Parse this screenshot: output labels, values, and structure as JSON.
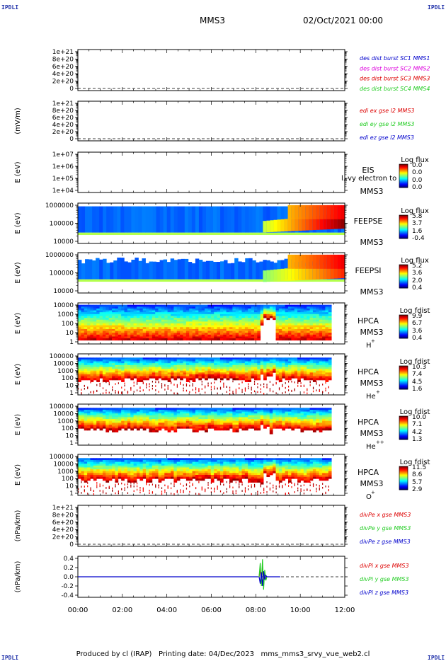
{
  "header": {
    "corner_mark": "IPDLI",
    "spacecraft": "MMS3",
    "datetime": "02/Oct/2021 00:00"
  },
  "footer": {
    "produced_by": "Produced by cl (IRAP)",
    "printing_date": "Printing date: 04/Dec/2023",
    "filename": "mms_mms3_srvy_vue_web2.cl"
  },
  "x_axis": {
    "ticks": [
      "00:00",
      "02:00",
      "04:00",
      "06:00",
      "08:00",
      "10:00",
      "12:00"
    ]
  },
  "colors": {
    "red": "#dd0000",
    "magenta": "#dd00dd",
    "green": "#22cc22",
    "blue": "#0000cc"
  },
  "panels": [
    {
      "id": "dist-burst",
      "type": "line",
      "ylabel": "",
      "ticks": [
        "1e+21",
        "8e+20",
        "6e+20",
        "4e+20",
        "2e+20",
        "0"
      ],
      "legend": [
        {
          "text": "des dist burst SC1 MMS1",
          "color": "blue"
        },
        {
          "text": "des dist burst SC2 MMS2",
          "color": "magenta"
        },
        {
          "text": "des dist burst SC3 MMS3",
          "color": "red"
        },
        {
          "text": "des dist burst SC4 MMS4",
          "color": "green"
        }
      ]
    },
    {
      "id": "edi",
      "type": "line",
      "ylabel": "(mV/m)",
      "ticks": [
        "1e+21",
        "8e+20",
        "6e+20",
        "4e+20",
        "2e+20",
        "0"
      ],
      "legend": [
        {
          "text": "edi ex gse l2 MMS3",
          "color": "red"
        },
        {
          "text": "edi ey gse l2 MMS3",
          "color": "green"
        },
        {
          "text": "edi ez gse l2 MMS3",
          "color": "blue"
        }
      ]
    },
    {
      "id": "eis",
      "type": "spectrogram",
      "ylabel": "E (eV)",
      "ticks": [
        "1e+07",
        "1e+06",
        "1e+05",
        "1e+04"
      ],
      "instrument": "EIS",
      "instrument_extra": "l..vy electron to",
      "sc": "MMS3",
      "species": "",
      "cbar_title": "Log flux",
      "cbar_ticks": [
        "0.0",
        "0.0",
        "0.0",
        "0.0"
      ]
    },
    {
      "id": "feepse",
      "type": "spectrogram",
      "ylabel": "E (eV)",
      "ticks": [
        "1000000",
        "100000",
        "10000"
      ],
      "instrument": "FEEPSE",
      "sc": "MMS3",
      "species": "",
      "cbar_title": "Log flux",
      "cbar_ticks": [
        "5.8",
        "3.7",
        "1.6",
        "-0.4"
      ]
    },
    {
      "id": "feepsi",
      "type": "spectrogram",
      "ylabel": "E (eV)",
      "ticks": [
        "1000000",
        "100000",
        "10000"
      ],
      "instrument": "FEEPSI",
      "sc": "MMS3",
      "species": "",
      "cbar_title": "Log flux",
      "cbar_ticks": [
        "5.2",
        "3.6",
        "2.0",
        "0.4"
      ]
    },
    {
      "id": "hpca-h",
      "type": "spectrogram",
      "ylabel": "E (eV)",
      "ticks": [
        "10000",
        "1000",
        "100",
        "10",
        "1"
      ],
      "instrument": "HPCA",
      "sc": "MMS3",
      "species": "H",
      "species_charge": "+",
      "cbar_title": "Log fdist",
      "cbar_ticks": [
        "9.9",
        "6.7",
        "3.6",
        "0.4"
      ]
    },
    {
      "id": "hpca-he1",
      "type": "spectrogram",
      "ylabel": "E (eV)",
      "ticks": [
        "100000",
        "10000",
        "1000",
        "100",
        "10",
        "1"
      ],
      "instrument": "HPCA",
      "sc": "MMS3",
      "species": "He",
      "species_charge": "+",
      "cbar_title": "Log fdist",
      "cbar_ticks": [
        "10.3",
        "7.4",
        "4.5",
        "1.6"
      ]
    },
    {
      "id": "hpca-he2",
      "type": "spectrogram",
      "ylabel": "E (eV)",
      "ticks": [
        "100000",
        "10000",
        "1000",
        "100",
        "10",
        "1"
      ],
      "instrument": "HPCA",
      "sc": "MMS3",
      "species": "He",
      "species_charge": "++",
      "cbar_title": "Log fdist",
      "cbar_ticks": [
        "10.0",
        "7.1",
        "4.2",
        "1.3"
      ]
    },
    {
      "id": "hpca-o",
      "type": "spectrogram",
      "ylabel": "E (eV)",
      "ticks": [
        "100000",
        "10000",
        "1000",
        "100",
        "10",
        "1"
      ],
      "instrument": "HPCA",
      "sc": "MMS3",
      "species": "O",
      "species_charge": "+",
      "cbar_title": "Log fdist",
      "cbar_ticks": [
        "11.5",
        "8.6",
        "5.7",
        "2.9"
      ]
    },
    {
      "id": "divpe",
      "type": "line",
      "ylabel": "(nPa/km)",
      "ticks": [
        "1e+21",
        "8e+20",
        "6e+20",
        "4e+20",
        "2e+20",
        "0"
      ],
      "legend": [
        {
          "text": "divPe x gse MMS3",
          "color": "red"
        },
        {
          "text": "divPe y gse MMS3",
          "color": "green"
        },
        {
          "text": "divPe z gse MMS3",
          "color": "blue"
        }
      ]
    },
    {
      "id": "divpi",
      "type": "line",
      "ylabel": "(nPa/km)",
      "ticks": [
        "0.4",
        "0.2",
        "0.0",
        "-0.2",
        "-0.4"
      ],
      "legend": [
        {
          "text": "divPi x gse MMS3",
          "color": "red"
        },
        {
          "text": "divPi y gse MMS3",
          "color": "green"
        },
        {
          "text": "divPi z gse MMS3",
          "color": "blue"
        }
      ]
    }
  ],
  "chart_data": {
    "type": "heatmap",
    "x_unit": "UT hours",
    "xlim": [
      0,
      12
    ],
    "divpi_spike": {
      "x_hours": [
        8.15,
        8.2,
        8.25,
        8.3,
        8.35,
        8.4,
        8.45,
        8.5
      ],
      "x_comp": [
        0.0,
        0.18,
        -0.12,
        0.25,
        -0.2,
        0.1,
        -0.05,
        0.0
      ],
      "y_comp": [
        0.0,
        0.3,
        -0.2,
        0.38,
        -0.28,
        0.15,
        -0.08,
        0.0
      ],
      "z_comp": [
        0.0,
        -0.15,
        0.1,
        -0.2,
        0.12,
        -0.06,
        0.03,
        0.0
      ]
    }
  }
}
